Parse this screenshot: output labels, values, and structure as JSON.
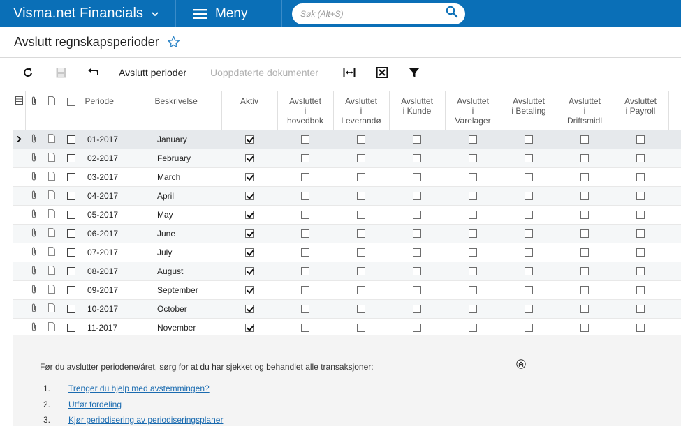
{
  "app": {
    "brand": "Visma.net Financials",
    "menu_label": "Meny",
    "search_placeholder": "Søk (Alt+S)"
  },
  "page": {
    "title": "Avslutt regnskapsperioder"
  },
  "toolbar": {
    "close_periods_label": "Avslutt perioder",
    "update_documents_label": "Uoppdaterte dokumenter"
  },
  "grid": {
    "columns": {
      "period": "Periode",
      "description": "Beskrivelse",
      "active": "Aktiv",
      "closed_gl": [
        "Avsluttet",
        "i",
        "hovedbok"
      ],
      "closed_ap": [
        "Avsluttet",
        "i",
        "Leverandø"
      ],
      "closed_ar": [
        "Avsluttet",
        "i Kunde"
      ],
      "closed_in": [
        "Avsluttet",
        "i",
        "Varelager"
      ],
      "closed_ca": [
        "Avsluttet",
        "i Betaling"
      ],
      "closed_fa": [
        "Avsluttet",
        "i",
        "Driftsmidl"
      ],
      "closed_pr": [
        "Avsluttet",
        "i Payroll"
      ]
    },
    "rows": [
      {
        "period": "01-2017",
        "description": "January",
        "active": true
      },
      {
        "period": "02-2017",
        "description": "February",
        "active": true
      },
      {
        "period": "03-2017",
        "description": "March",
        "active": true
      },
      {
        "period": "04-2017",
        "description": "April",
        "active": true
      },
      {
        "period": "05-2017",
        "description": "May",
        "active": true
      },
      {
        "period": "06-2017",
        "description": "June",
        "active": true
      },
      {
        "period": "07-2017",
        "description": "July",
        "active": true
      },
      {
        "period": "08-2017",
        "description": "August",
        "active": true
      },
      {
        "period": "09-2017",
        "description": "September",
        "active": true
      },
      {
        "period": "10-2017",
        "description": "October",
        "active": true
      },
      {
        "period": "11-2017",
        "description": "November",
        "active": true
      }
    ]
  },
  "info": {
    "text": "Før du avslutter periodene/året, sørg for at du har sjekket og behandlet alle transaksjoner:",
    "steps": [
      {
        "num": "1.",
        "label": "Trenger du hjelp med avstemmingen?"
      },
      {
        "num": "2.",
        "label": "Utfør fordeling"
      },
      {
        "num": "3.",
        "label": "Kjør periodisering av periodiseringsplaner"
      }
    ]
  },
  "colors": {
    "topbar": "#0a6fb7",
    "link": "#1a6bb0"
  }
}
